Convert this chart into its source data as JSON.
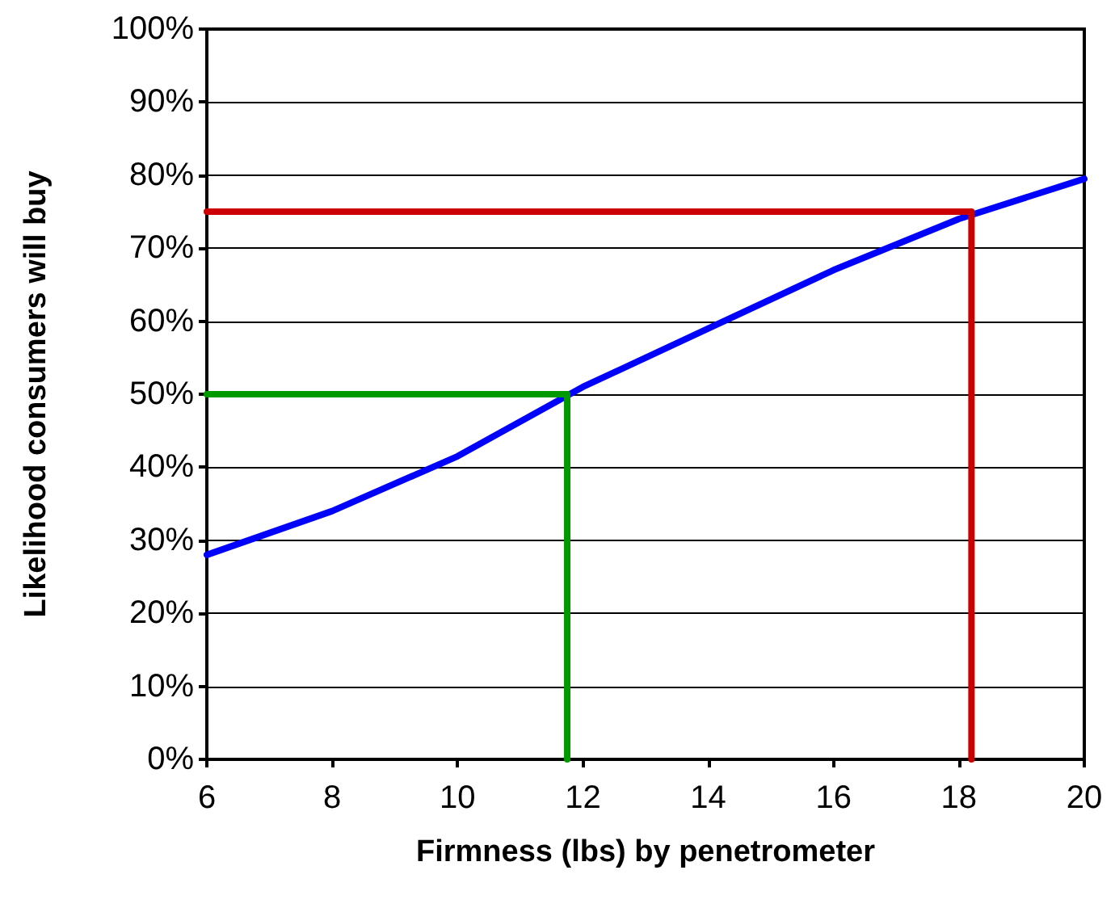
{
  "chart_data": {
    "type": "line",
    "xlabel": "Firmness (lbs) by penetrometer",
    "ylabel": "Likelihood consumers will buy",
    "series": [
      {
        "color": "#0000ff",
        "x": [
          6,
          8,
          10,
          12,
          14,
          16,
          18,
          20
        ],
        "values": [
          28,
          34,
          41.5,
          51,
          59,
          67,
          74,
          79.5
        ]
      },
      {
        "color": "#009900",
        "x": [
          6,
          11.75,
          11.75
        ],
        "values": [
          50,
          50,
          0
        ]
      },
      {
        "color": "#cc0000",
        "x": [
          6,
          18.2,
          18.2
        ],
        "values": [
          75,
          75,
          0
        ]
      }
    ],
    "xlim": [
      6,
      20
    ],
    "xticks": [
      6,
      8,
      10,
      12,
      14,
      16,
      18,
      20
    ],
    "ylim": [
      0,
      100
    ],
    "yticks": [
      {
        "value": 0,
        "label": "0%"
      },
      {
        "value": 10,
        "label": "10%"
      },
      {
        "value": 20,
        "label": "20%"
      },
      {
        "value": 30,
        "label": "30%"
      },
      {
        "value": 40,
        "label": "40%"
      },
      {
        "value": 50,
        "label": "50%"
      },
      {
        "value": 60,
        "label": "60%"
      },
      {
        "value": 70,
        "label": "70%"
      },
      {
        "value": 80,
        "label": "80%"
      },
      {
        "value": 90,
        "label": "90%"
      },
      {
        "value": 100,
        "label": "100%"
      }
    ],
    "grid": "y",
    "marker": "none",
    "line_style": "solid"
  }
}
